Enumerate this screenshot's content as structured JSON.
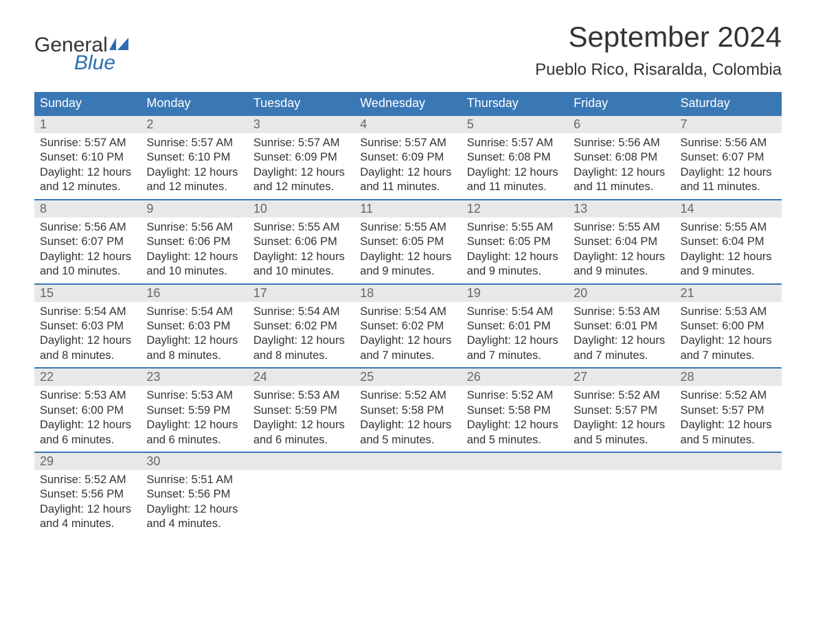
{
  "logo": {
    "word1": "General",
    "word2": "Blue",
    "flag_color": "#2a6db0"
  },
  "title": "September 2024",
  "location": "Pueblo Rico, Risaralda, Colombia",
  "header_bg": "#3a77b5",
  "header_fg": "#ffffff",
  "date_strip_bg": "#e8e8e8",
  "date_fg": "#666666",
  "body_fg": "#333333",
  "day_names": [
    "Sunday",
    "Monday",
    "Tuesday",
    "Wednesday",
    "Thursday",
    "Friday",
    "Saturday"
  ],
  "weeks": [
    [
      {
        "date": "1",
        "sunrise": "5:57 AM",
        "sunset": "6:10 PM",
        "daylight": "12 hours and 12 minutes."
      },
      {
        "date": "2",
        "sunrise": "5:57 AM",
        "sunset": "6:10 PM",
        "daylight": "12 hours and 12 minutes."
      },
      {
        "date": "3",
        "sunrise": "5:57 AM",
        "sunset": "6:09 PM",
        "daylight": "12 hours and 12 minutes."
      },
      {
        "date": "4",
        "sunrise": "5:57 AM",
        "sunset": "6:09 PM",
        "daylight": "12 hours and 11 minutes."
      },
      {
        "date": "5",
        "sunrise": "5:57 AM",
        "sunset": "6:08 PM",
        "daylight": "12 hours and 11 minutes."
      },
      {
        "date": "6",
        "sunrise": "5:56 AM",
        "sunset": "6:08 PM",
        "daylight": "12 hours and 11 minutes."
      },
      {
        "date": "7",
        "sunrise": "5:56 AM",
        "sunset": "6:07 PM",
        "daylight": "12 hours and 11 minutes."
      }
    ],
    [
      {
        "date": "8",
        "sunrise": "5:56 AM",
        "sunset": "6:07 PM",
        "daylight": "12 hours and 10 minutes."
      },
      {
        "date": "9",
        "sunrise": "5:56 AM",
        "sunset": "6:06 PM",
        "daylight": "12 hours and 10 minutes."
      },
      {
        "date": "10",
        "sunrise": "5:55 AM",
        "sunset": "6:06 PM",
        "daylight": "12 hours and 10 minutes."
      },
      {
        "date": "11",
        "sunrise": "5:55 AM",
        "sunset": "6:05 PM",
        "daylight": "12 hours and 9 minutes."
      },
      {
        "date": "12",
        "sunrise": "5:55 AM",
        "sunset": "6:05 PM",
        "daylight": "12 hours and 9 minutes."
      },
      {
        "date": "13",
        "sunrise": "5:55 AM",
        "sunset": "6:04 PM",
        "daylight": "12 hours and 9 minutes."
      },
      {
        "date": "14",
        "sunrise": "5:55 AM",
        "sunset": "6:04 PM",
        "daylight": "12 hours and 9 minutes."
      }
    ],
    [
      {
        "date": "15",
        "sunrise": "5:54 AM",
        "sunset": "6:03 PM",
        "daylight": "12 hours and 8 minutes."
      },
      {
        "date": "16",
        "sunrise": "5:54 AM",
        "sunset": "6:03 PM",
        "daylight": "12 hours and 8 minutes."
      },
      {
        "date": "17",
        "sunrise": "5:54 AM",
        "sunset": "6:02 PM",
        "daylight": "12 hours and 8 minutes."
      },
      {
        "date": "18",
        "sunrise": "5:54 AM",
        "sunset": "6:02 PM",
        "daylight": "12 hours and 7 minutes."
      },
      {
        "date": "19",
        "sunrise": "5:54 AM",
        "sunset": "6:01 PM",
        "daylight": "12 hours and 7 minutes."
      },
      {
        "date": "20",
        "sunrise": "5:53 AM",
        "sunset": "6:01 PM",
        "daylight": "12 hours and 7 minutes."
      },
      {
        "date": "21",
        "sunrise": "5:53 AM",
        "sunset": "6:00 PM",
        "daylight": "12 hours and 7 minutes."
      }
    ],
    [
      {
        "date": "22",
        "sunrise": "5:53 AM",
        "sunset": "6:00 PM",
        "daylight": "12 hours and 6 minutes."
      },
      {
        "date": "23",
        "sunrise": "5:53 AM",
        "sunset": "5:59 PM",
        "daylight": "12 hours and 6 minutes."
      },
      {
        "date": "24",
        "sunrise": "5:53 AM",
        "sunset": "5:59 PM",
        "daylight": "12 hours and 6 minutes."
      },
      {
        "date": "25",
        "sunrise": "5:52 AM",
        "sunset": "5:58 PM",
        "daylight": "12 hours and 5 minutes."
      },
      {
        "date": "26",
        "sunrise": "5:52 AM",
        "sunset": "5:58 PM",
        "daylight": "12 hours and 5 minutes."
      },
      {
        "date": "27",
        "sunrise": "5:52 AM",
        "sunset": "5:57 PM",
        "daylight": "12 hours and 5 minutes."
      },
      {
        "date": "28",
        "sunrise": "5:52 AM",
        "sunset": "5:57 PM",
        "daylight": "12 hours and 5 minutes."
      }
    ],
    [
      {
        "date": "29",
        "sunrise": "5:52 AM",
        "sunset": "5:56 PM",
        "daylight": "12 hours and 4 minutes."
      },
      {
        "date": "30",
        "sunrise": "5:51 AM",
        "sunset": "5:56 PM",
        "daylight": "12 hours and 4 minutes."
      },
      {
        "date": "",
        "sunrise": "",
        "sunset": "",
        "daylight": ""
      },
      {
        "date": "",
        "sunrise": "",
        "sunset": "",
        "daylight": ""
      },
      {
        "date": "",
        "sunrise": "",
        "sunset": "",
        "daylight": ""
      },
      {
        "date": "",
        "sunrise": "",
        "sunset": "",
        "daylight": ""
      },
      {
        "date": "",
        "sunrise": "",
        "sunset": "",
        "daylight": ""
      }
    ]
  ],
  "labels": {
    "sunrise": "Sunrise: ",
    "sunset": "Sunset: ",
    "daylight": "Daylight: "
  }
}
